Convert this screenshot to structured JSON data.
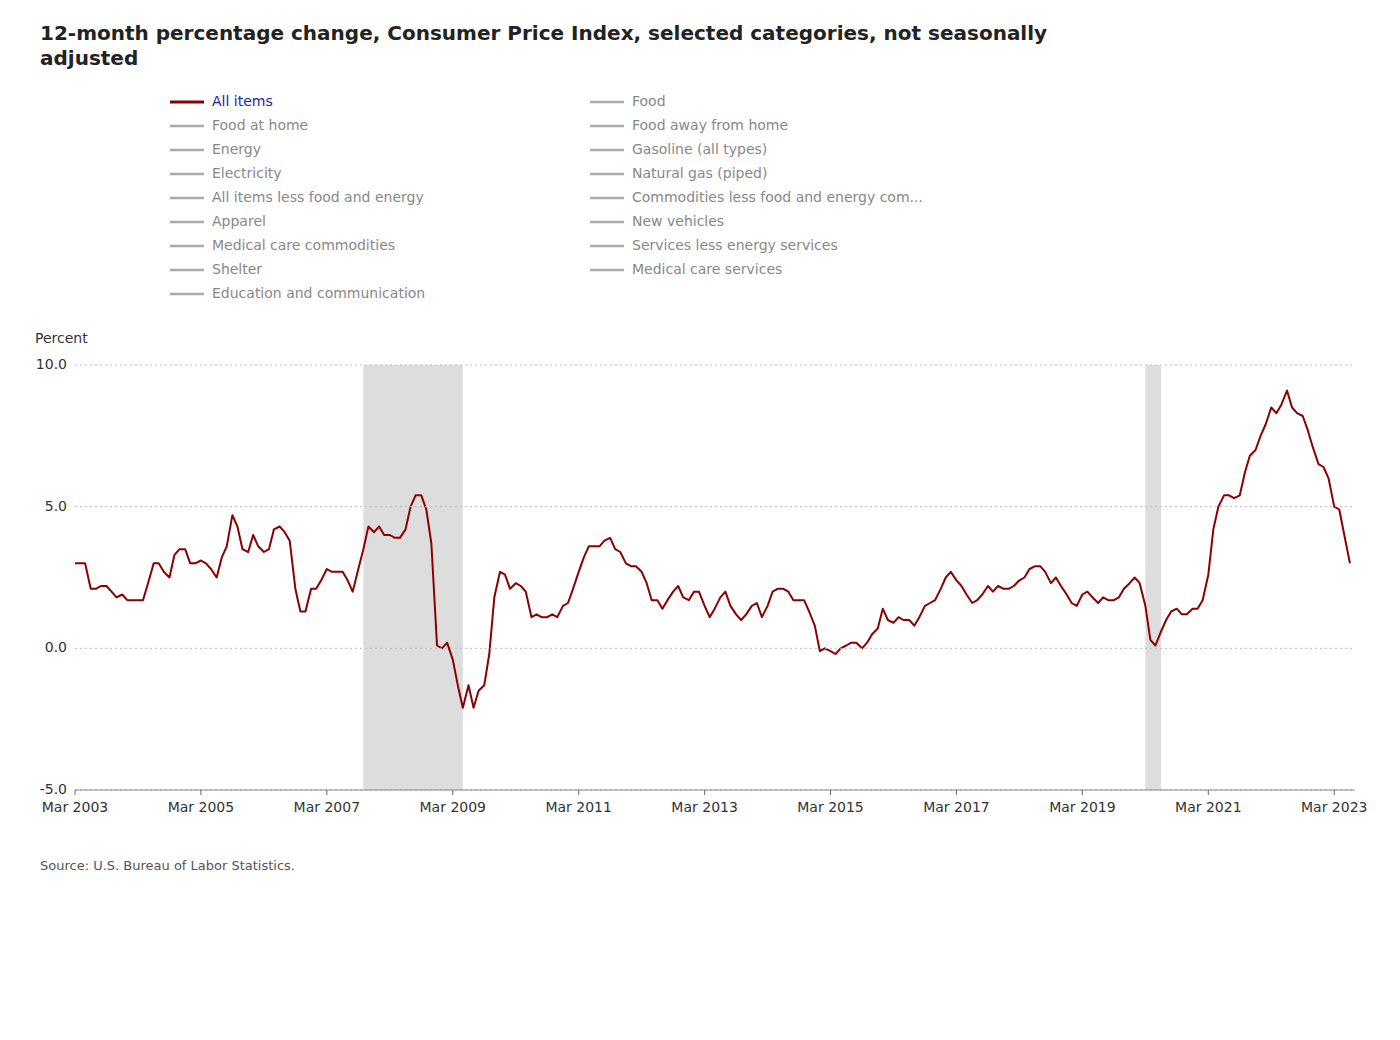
{
  "chart_data": {
    "type": "line",
    "title": "12-month percentage change, Consumer Price Index, selected categories, not seasonally\nadjusted",
    "y_label": "Percent",
    "source": "Source: U.S. Bureau of Labor Statistics.",
    "legend_inactive_col1": [
      "Food at home",
      "Energy",
      "Electricity",
      "All items less food and energy",
      "Apparel",
      "Medical care commodities",
      "Shelter",
      "Education and communication"
    ],
    "legend_inactive_col2": [
      "Food",
      "Food away from home",
      "Gasoline (all types)",
      "Natural gas (piped)",
      "Commodities less food and energy com...",
      "New vehicles",
      "Services less energy services",
      "Medical care services"
    ],
    "recessions": [
      {
        "start": 2007.75,
        "end": 2009.33
      },
      {
        "start": 2020.17,
        "end": 2020.42
      }
    ],
    "xlim": [
      2003.17,
      2023.5
    ],
    "xticks": [
      {
        "value": 2003.17,
        "label": "Mar 2003"
      },
      {
        "value": 2005.17,
        "label": "Mar 2005"
      },
      {
        "value": 2007.17,
        "label": "Mar 2007"
      },
      {
        "value": 2009.17,
        "label": "Mar 2009"
      },
      {
        "value": 2011.17,
        "label": "Mar 2011"
      },
      {
        "value": 2013.17,
        "label": "Mar 2013"
      },
      {
        "value": 2015.17,
        "label": "Mar 2015"
      },
      {
        "value": 2017.17,
        "label": "Mar 2017"
      },
      {
        "value": 2019.17,
        "label": "Mar 2019"
      },
      {
        "value": 2021.17,
        "label": "Mar 2021"
      },
      {
        "value": 2023.17,
        "label": "Mar 2023"
      }
    ],
    "ylim": [
      -5.0,
      10.0
    ],
    "yticks": [
      {
        "value": -5.0,
        "label": "-5.0"
      },
      {
        "value": 0.0,
        "label": "0.0"
      },
      {
        "value": 5.0,
        "label": "5.0"
      },
      {
        "value": 10.0,
        "label": "10.0"
      }
    ],
    "grid": true,
    "x": [
      2003.17,
      2003.25,
      2003.33,
      2003.42,
      2003.5,
      2003.58,
      2003.67,
      2003.75,
      2003.83,
      2003.92,
      2004.0,
      2004.08,
      2004.17,
      2004.25,
      2004.33,
      2004.42,
      2004.5,
      2004.58,
      2004.67,
      2004.75,
      2004.83,
      2004.92,
      2005.0,
      2005.08,
      2005.17,
      2005.25,
      2005.33,
      2005.42,
      2005.5,
      2005.58,
      2005.67,
      2005.75,
      2005.83,
      2005.92,
      2006.0,
      2006.08,
      2006.17,
      2006.25,
      2006.33,
      2006.42,
      2006.5,
      2006.58,
      2006.67,
      2006.75,
      2006.83,
      2006.92,
      2007.0,
      2007.08,
      2007.17,
      2007.25,
      2007.33,
      2007.42,
      2007.5,
      2007.58,
      2007.67,
      2007.75,
      2007.83,
      2007.92,
      2008.0,
      2008.08,
      2008.17,
      2008.25,
      2008.33,
      2008.42,
      2008.5,
      2008.58,
      2008.67,
      2008.75,
      2008.83,
      2008.92,
      2009.0,
      2009.08,
      2009.17,
      2009.25,
      2009.33,
      2009.42,
      2009.5,
      2009.58,
      2009.67,
      2009.75,
      2009.83,
      2009.92,
      2010.0,
      2010.08,
      2010.17,
      2010.25,
      2010.33,
      2010.42,
      2010.5,
      2010.58,
      2010.67,
      2010.75,
      2010.83,
      2010.92,
      2011.0,
      2011.08,
      2011.17,
      2011.25,
      2011.33,
      2011.42,
      2011.5,
      2011.58,
      2011.67,
      2011.75,
      2011.83,
      2011.92,
      2012.0,
      2012.08,
      2012.17,
      2012.25,
      2012.33,
      2012.42,
      2012.5,
      2012.58,
      2012.67,
      2012.75,
      2012.83,
      2012.92,
      2013.0,
      2013.08,
      2013.17,
      2013.25,
      2013.33,
      2013.42,
      2013.5,
      2013.58,
      2013.67,
      2013.75,
      2013.83,
      2013.92,
      2014.0,
      2014.08,
      2014.17,
      2014.25,
      2014.33,
      2014.42,
      2014.5,
      2014.58,
      2014.67,
      2014.75,
      2014.83,
      2014.92,
      2015.0,
      2015.08,
      2015.17,
      2015.25,
      2015.33,
      2015.42,
      2015.5,
      2015.58,
      2015.67,
      2015.75,
      2015.83,
      2015.92,
      2016.0,
      2016.08,
      2016.17,
      2016.25,
      2016.33,
      2016.42,
      2016.5,
      2016.58,
      2016.67,
      2016.75,
      2016.83,
      2016.92,
      2017.0,
      2017.08,
      2017.17,
      2017.25,
      2017.33,
      2017.42,
      2017.5,
      2017.58,
      2017.67,
      2017.75,
      2017.83,
      2017.92,
      2018.0,
      2018.08,
      2018.17,
      2018.25,
      2018.33,
      2018.42,
      2018.5,
      2018.58,
      2018.67,
      2018.75,
      2018.83,
      2018.92,
      2019.0,
      2019.08,
      2019.17,
      2019.25,
      2019.33,
      2019.42,
      2019.5,
      2019.58,
      2019.67,
      2019.75,
      2019.83,
      2019.92,
      2020.0,
      2020.08,
      2020.17,
      2020.25,
      2020.33,
      2020.42,
      2020.5,
      2020.58,
      2020.67,
      2020.75,
      2020.83,
      2020.92,
      2021.0,
      2021.08,
      2021.17,
      2021.25,
      2021.33,
      2021.42,
      2021.5,
      2021.58,
      2021.67,
      2021.75,
      2021.83,
      2021.92,
      2022.0,
      2022.08,
      2022.17,
      2022.25,
      2022.33,
      2022.42,
      2022.5,
      2022.58,
      2022.67,
      2022.75,
      2022.83,
      2022.92,
      2023.0,
      2023.08,
      2023.17,
      2023.25,
      2023.33,
      2023.42
    ],
    "series": [
      {
        "name": "All items",
        "color": "#8B0000",
        "values": [
          3.0,
          3.0,
          3.0,
          2.1,
          2.1,
          2.2,
          2.2,
          2.0,
          1.8,
          1.9,
          1.7,
          1.7,
          1.7,
          1.7,
          2.3,
          3.0,
          3.0,
          2.7,
          2.5,
          3.3,
          3.5,
          3.5,
          3.0,
          3.0,
          3.1,
          3.0,
          2.8,
          2.5,
          3.2,
          3.6,
          4.7,
          4.3,
          3.5,
          3.4,
          4.0,
          3.6,
          3.4,
          3.5,
          4.2,
          4.3,
          4.1,
          3.8,
          2.1,
          1.3,
          1.3,
          2.1,
          2.1,
          2.4,
          2.8,
          2.7,
          2.7,
          2.7,
          2.4,
          2.0,
          2.8,
          3.5,
          4.3,
          4.1,
          4.3,
          4.0,
          4.0,
          3.9,
          3.9,
          4.2,
          5.0,
          5.4,
          5.4,
          4.9,
          3.7,
          0.1,
          0.0,
          0.2,
          -0.4,
          -1.3,
          -2.1,
          -1.3,
          -2.1,
          -1.5,
          -1.3,
          -0.2,
          1.8,
          2.7,
          2.6,
          2.1,
          2.3,
          2.2,
          2.0,
          1.1,
          1.2,
          1.1,
          1.1,
          1.2,
          1.1,
          1.5,
          1.6,
          2.1,
          2.7,
          3.2,
          3.6,
          3.6,
          3.6,
          3.8,
          3.9,
          3.5,
          3.4,
          3.0,
          2.9,
          2.9,
          2.7,
          2.3,
          1.7,
          1.7,
          1.4,
          1.7,
          2.0,
          2.2,
          1.8,
          1.7,
          2.0,
          2.0,
          1.5,
          1.1,
          1.4,
          1.8,
          2.0,
          1.5,
          1.2,
          1.0,
          1.2,
          1.5,
          1.6,
          1.1,
          1.5,
          2.0,
          2.1,
          2.1,
          2.0,
          1.7,
          1.7,
          1.7,
          1.3,
          0.8,
          -0.1,
          0.0,
          -0.1,
          -0.2,
          0.0,
          0.1,
          0.2,
          0.2,
          0.0,
          0.2,
          0.5,
          0.7,
          1.4,
          1.0,
          0.9,
          1.1,
          1.0,
          1.0,
          0.8,
          1.1,
          1.5,
          1.6,
          1.7,
          2.1,
          2.5,
          2.7,
          2.4,
          2.2,
          1.9,
          1.6,
          1.7,
          1.9,
          2.2,
          2.0,
          2.2,
          2.1,
          2.1,
          2.2,
          2.4,
          2.5,
          2.8,
          2.9,
          2.9,
          2.7,
          2.3,
          2.5,
          2.2,
          1.9,
          1.6,
          1.5,
          1.9,
          2.0,
          1.8,
          1.6,
          1.8,
          1.7,
          1.7,
          1.8,
          2.1,
          2.3,
          2.5,
          2.3,
          1.5,
          0.3,
          0.1,
          0.6,
          1.0,
          1.3,
          1.4,
          1.2,
          1.2,
          1.4,
          1.4,
          1.7,
          2.6,
          4.2,
          5.0,
          5.4,
          5.4,
          5.3,
          5.4,
          6.2,
          6.8,
          7.0,
          7.5,
          7.9,
          8.5,
          8.3,
          8.6,
          9.1,
          8.5,
          8.3,
          8.2,
          7.7,
          7.1,
          6.5,
          6.4,
          6.0,
          5.0,
          4.9,
          4.0,
          3.0
        ]
      }
    ]
  }
}
